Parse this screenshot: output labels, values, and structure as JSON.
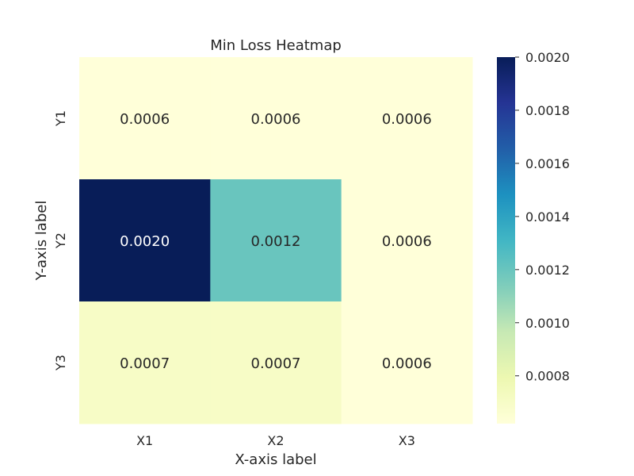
{
  "chart_data": {
    "type": "heatmap",
    "title": "Min Loss Heatmap",
    "xlabel": "X-axis label",
    "ylabel": "Y-axis label",
    "x_categories": [
      "X1",
      "X2",
      "X3"
    ],
    "y_categories": [
      "Y1",
      "Y2",
      "Y3"
    ],
    "values": [
      [
        0.0006,
        0.0006,
        0.0006
      ],
      [
        0.002,
        0.0012,
        0.0006
      ],
      [
        0.0007,
        0.0007,
        0.0006
      ]
    ],
    "cell_labels": [
      [
        "0.0006",
        "0.0006",
        "0.0006"
      ],
      [
        "0.0020",
        "0.0012",
        "0.0006"
      ],
      [
        "0.0007",
        "0.0007",
        "0.0006"
      ]
    ],
    "colorbar": {
      "range": [
        0.00062,
        0.002
      ],
      "ticks": [
        0.0008,
        0.001,
        0.0012,
        0.0014,
        0.0016,
        0.0018,
        0.002
      ],
      "tick_labels": [
        "0.0008",
        "0.0010",
        "0.0012",
        "0.0014",
        "0.0016",
        "0.0018",
        "0.0020"
      ]
    },
    "colormap": "YlGnBu",
    "grid": false
  }
}
